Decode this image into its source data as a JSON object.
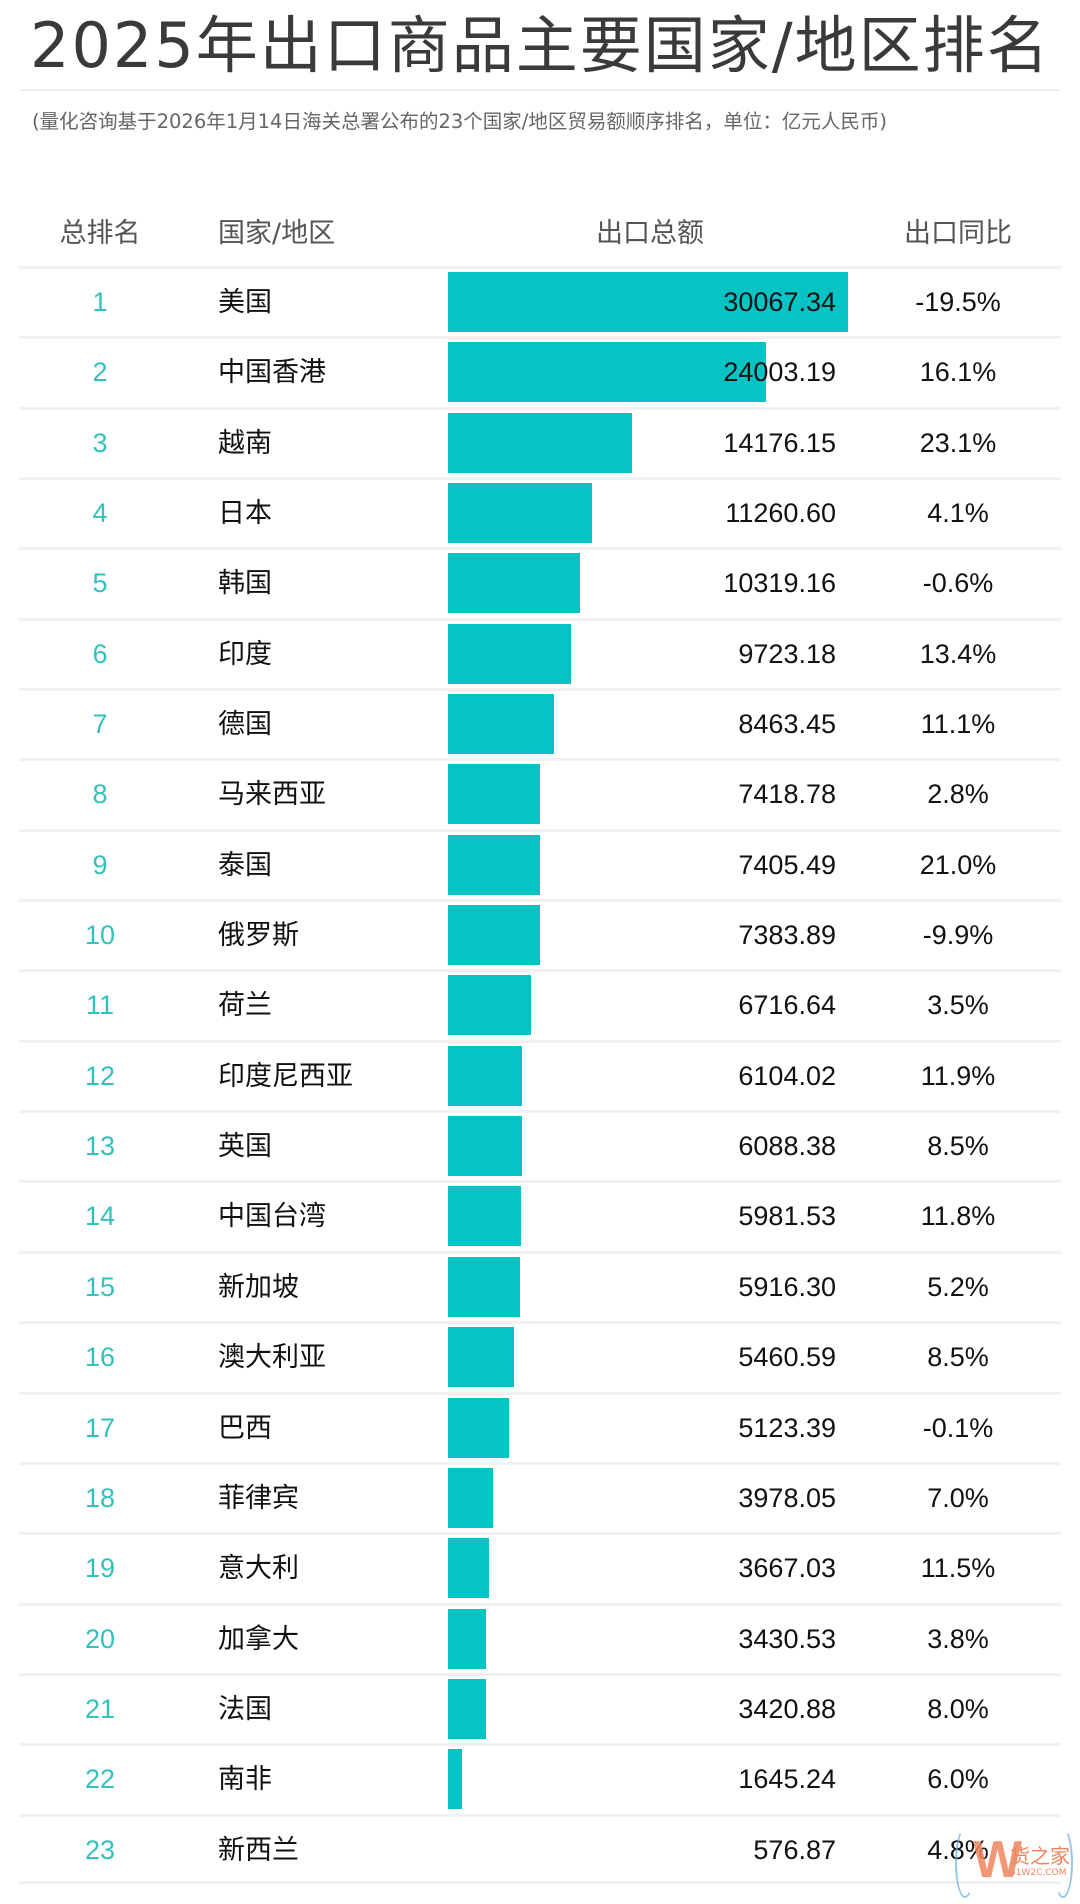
{
  "title": "2025年出口商品主要国家/地区排名",
  "subtitle": "(量化咨询基于2026年1月14日海关总署公布的23个国家/地区贸易额顺序排名，单位：亿元人民币)",
  "header": {
    "rank": "总排名",
    "country": "国家/地区",
    "amount": "出口总额",
    "yoy": "出口同比"
  },
  "colors": {
    "bar": "#07c3c3",
    "rank": "#33c2bb",
    "title": "#3a3a3a",
    "header": "#555555",
    "separator": "#f1f1f1"
  },
  "rows": [
    {
      "rank": "1",
      "country": "美国",
      "amount": "30067.34",
      "yoy": "-19.5%"
    },
    {
      "rank": "2",
      "country": "中国香港",
      "amount": "24003.19",
      "yoy": "16.1%"
    },
    {
      "rank": "3",
      "country": "越南",
      "amount": "14176.15",
      "yoy": "23.1%"
    },
    {
      "rank": "4",
      "country": "日本",
      "amount": "11260.60",
      "yoy": "4.1%"
    },
    {
      "rank": "5",
      "country": "韩国",
      "amount": "10319.16",
      "yoy": "-0.6%"
    },
    {
      "rank": "6",
      "country": "印度",
      "amount": "9723.18",
      "yoy": "13.4%"
    },
    {
      "rank": "7",
      "country": "德国",
      "amount": "8463.45",
      "yoy": "11.1%"
    },
    {
      "rank": "8",
      "country": "马来西亚",
      "amount": "7418.78",
      "yoy": "2.8%"
    },
    {
      "rank": "9",
      "country": "泰国",
      "amount": "7405.49",
      "yoy": "21.0%"
    },
    {
      "rank": "10",
      "country": "俄罗斯",
      "amount": "7383.89",
      "yoy": "-9.9%"
    },
    {
      "rank": "11",
      "country": "荷兰",
      "amount": "6716.64",
      "yoy": "3.5%"
    },
    {
      "rank": "12",
      "country": "印度尼西亚",
      "amount": "6104.02",
      "yoy": "11.9%"
    },
    {
      "rank": "13",
      "country": "英国",
      "amount": "6088.38",
      "yoy": "8.5%"
    },
    {
      "rank": "14",
      "country": "中国台湾",
      "amount": "5981.53",
      "yoy": "11.8%"
    },
    {
      "rank": "15",
      "country": "新加坡",
      "amount": "5916.30",
      "yoy": "5.2%"
    },
    {
      "rank": "16",
      "country": "澳大利亚",
      "amount": "5460.59",
      "yoy": "8.5%"
    },
    {
      "rank": "17",
      "country": "巴西",
      "amount": "5123.39",
      "yoy": "-0.1%"
    },
    {
      "rank": "18",
      "country": "菲律宾",
      "amount": "3978.05",
      "yoy": "7.0%"
    },
    {
      "rank": "19",
      "country": "意大利",
      "amount": "3667.03",
      "yoy": "11.5%"
    },
    {
      "rank": "20",
      "country": "加拿大",
      "amount": "3430.53",
      "yoy": "3.8%"
    },
    {
      "rank": "21",
      "country": "法国",
      "amount": "3420.88",
      "yoy": "8.0%"
    },
    {
      "rank": "22",
      "country": "南非",
      "amount": "1645.24",
      "yoy": "6.0%"
    },
    {
      "rank": "23",
      "country": "新西兰",
      "amount": "576.87",
      "yoy": "4.8%"
    }
  ],
  "watermark": {
    "logo_letter": "W",
    "brand": "货之家",
    "url_text": "51W2C.COM"
  },
  "chart_data": {
    "type": "bar",
    "orientation": "horizontal",
    "title": "2025年出口商品主要国家/地区排名",
    "subtitle": "(量化咨询基于2026年1月14日海关总署公布的23个国家/地区贸易额顺序排名，单位：亿元人民币)",
    "xlabel": "出口总额",
    "ylabel": "国家/地区",
    "unit": "亿元人民币",
    "categories": [
      "美国",
      "中国香港",
      "越南",
      "日本",
      "韩国",
      "印度",
      "德国",
      "马来西亚",
      "泰国",
      "俄罗斯",
      "荷兰",
      "印度尼西亚",
      "英国",
      "中国台湾",
      "新加坡",
      "澳大利亚",
      "巴西",
      "菲律宾",
      "意大利",
      "加拿大",
      "法国",
      "南非",
      "新西兰"
    ],
    "series": [
      {
        "name": "出口总额",
        "values": [
          30067.34,
          24003.19,
          14176.15,
          11260.6,
          10319.16,
          9723.18,
          8463.45,
          7418.78,
          7405.49,
          7383.89,
          6716.64,
          6104.02,
          6088.38,
          5981.53,
          5916.3,
          5460.59,
          5123.39,
          3978.05,
          3667.03,
          3430.53,
          3420.88,
          1645.24,
          576.87
        ]
      },
      {
        "name": "出口同比(%)",
        "values": [
          -19.5,
          16.1,
          23.1,
          4.1,
          -0.6,
          13.4,
          11.1,
          2.8,
          21.0,
          -9.9,
          3.5,
          11.9,
          8.5,
          11.8,
          5.2,
          8.5,
          -0.1,
          7.0,
          11.5,
          3.8,
          8.0,
          6.0,
          4.8
        ]
      }
    ],
    "ranks": [
      1,
      2,
      3,
      4,
      5,
      6,
      7,
      8,
      9,
      10,
      11,
      12,
      13,
      14,
      15,
      16,
      17,
      18,
      19,
      20,
      21,
      22,
      23
    ],
    "grid": false,
    "legend": "none"
  }
}
